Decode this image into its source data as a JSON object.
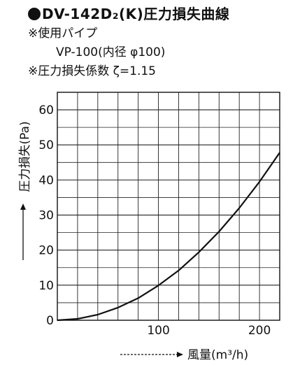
{
  "header": {
    "title": "DV-142D₂(K)圧力損失曲線",
    "line1": "※使用パイプ",
    "line2": "VP-100(内径 φ100)",
    "line3": "※圧力損失係数 ζ=1.15"
  },
  "chart_data": {
    "type": "line",
    "title": "DV-142D₂(K)圧力損失曲線",
    "xlabel": "風量(m³/h)",
    "ylabel": "圧力損失(Pa)",
    "xlim": [
      0,
      220
    ],
    "ylim": [
      0,
      65
    ],
    "xticks": [
      100,
      200
    ],
    "yticks": [
      0,
      10,
      20,
      30,
      40,
      50,
      60
    ],
    "grid": true,
    "series": [
      {
        "x": [
          0,
          20,
          40,
          60,
          80,
          100,
          120,
          140,
          160,
          180,
          200,
          220
        ],
        "y": [
          0,
          0.4,
          1.6,
          3.6,
          6.3,
          9.9,
          14.2,
          19.4,
          25.3,
          32.0,
          39.5,
          47.8
        ]
      }
    ]
  }
}
